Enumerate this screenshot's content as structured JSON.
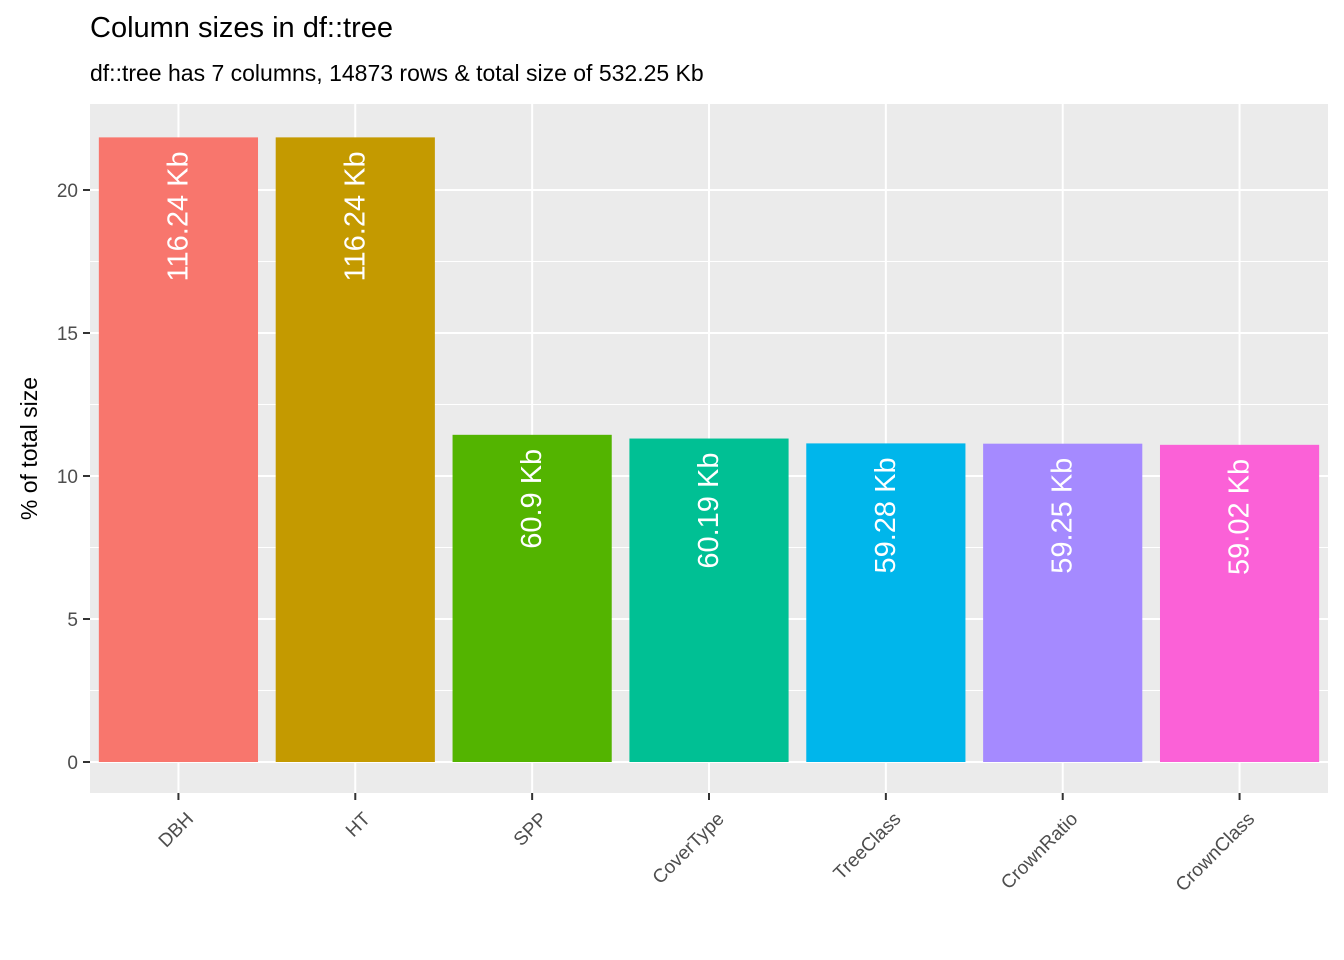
{
  "chart_data": {
    "type": "bar",
    "title": "Column sizes in df::tree",
    "subtitle": "df::tree has 7 columns, 14873 rows & total size of 532.25 Kb",
    "xlabel": "",
    "ylabel": "% of total size",
    "ylim": [
      0,
      22.9
    ],
    "yticks": [
      0,
      5,
      10,
      15,
      20
    ],
    "grid": true,
    "legend": "none",
    "categories": [
      "DBH",
      "HT",
      "SPP",
      "CoverType",
      "TreeClass",
      "CrownRatio",
      "CrownClass"
    ],
    "values": [
      21.84,
      21.84,
      11.44,
      11.31,
      11.14,
      11.13,
      11.09
    ],
    "bar_labels": [
      "116.24 Kb",
      "116.24 Kb",
      "60.9 Kb",
      "60.19 Kb",
      "59.28 Kb",
      "59.25 Kb",
      "59.02 Kb"
    ],
    "colors": [
      "#F8766D",
      "#C49A00",
      "#53B400",
      "#00C094",
      "#00B6EB",
      "#A58AFF",
      "#FB61D7"
    ],
    "panel_background": "#EBEBEB",
    "grid_color": "#FFFFFF"
  }
}
